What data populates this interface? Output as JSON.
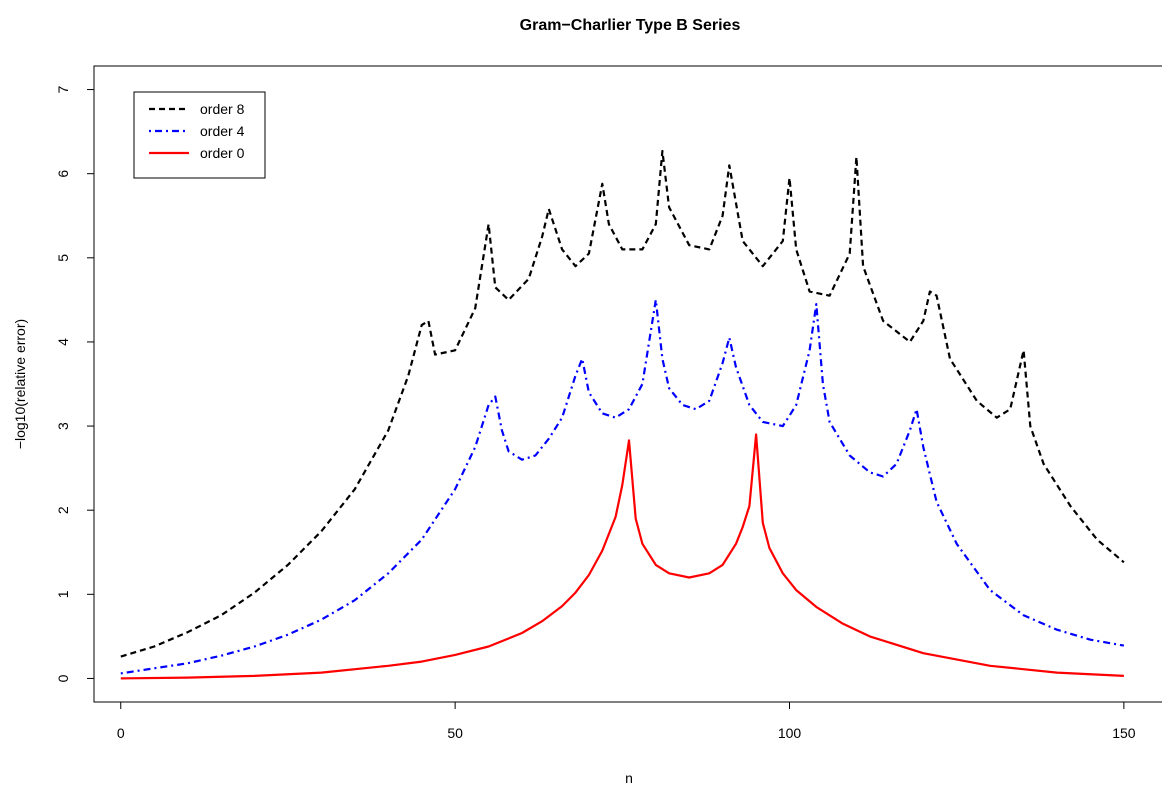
{
  "chart_data": {
    "type": "line",
    "title": "Gram−Charlier Type B Series",
    "xlabel": "n",
    "ylabel": "−log10(relative error)",
    "xlim": [
      -4,
      156
    ],
    "ylim": [
      -0.28,
      7.28
    ],
    "xticks": [
      0,
      50,
      100,
      150
    ],
    "yticks": [
      0,
      1,
      2,
      3,
      4,
      5,
      6,
      7
    ],
    "xtick_labels": [
      "0",
      "50",
      "100",
      "150"
    ],
    "ytick_labels": [
      "0",
      "1",
      "2",
      "3",
      "4",
      "5",
      "6",
      "7"
    ],
    "grid": false,
    "legend": {
      "position": "top-left",
      "entries": [
        "order 8",
        "order 4",
        "order 0"
      ]
    },
    "series": [
      {
        "name": "order 8",
        "color": "#000000",
        "dash": "dashed",
        "x": [
          0,
          5,
          10,
          15,
          20,
          25,
          30,
          35,
          40,
          43,
          45,
          46,
          47,
          50,
          53,
          55,
          56,
          58,
          61,
          63,
          64,
          66,
          68,
          70,
          72,
          73,
          75,
          78,
          80,
          81,
          82,
          85,
          88,
          90,
          91,
          93,
          96,
          99,
          100,
          101,
          103,
          106,
          109,
          110,
          111,
          114,
          118,
          120,
          121,
          122,
          124,
          128,
          131,
          133,
          135,
          136,
          138,
          142,
          146,
          150
        ],
        "values": [
          0.26,
          0.38,
          0.55,
          0.75,
          1.02,
          1.35,
          1.75,
          2.25,
          2.95,
          3.6,
          4.2,
          4.25,
          3.85,
          3.9,
          4.4,
          5.4,
          4.65,
          4.5,
          4.75,
          5.25,
          5.58,
          5.1,
          4.9,
          5.05,
          5.88,
          5.4,
          5.1,
          5.1,
          5.4,
          6.27,
          5.6,
          5.15,
          5.1,
          5.5,
          6.1,
          5.2,
          4.9,
          5.2,
          5.95,
          5.1,
          4.6,
          4.55,
          5.05,
          6.2,
          4.9,
          4.25,
          4.0,
          4.25,
          4.6,
          4.55,
          3.8,
          3.3,
          3.1,
          3.2,
          3.9,
          3.0,
          2.55,
          2.05,
          1.65,
          1.38
        ]
      },
      {
        "name": "order 4",
        "color": "#0000ff",
        "dash": "dotdash",
        "x": [
          0,
          5,
          10,
          15,
          20,
          25,
          30,
          35,
          40,
          45,
          50,
          53,
          55,
          56,
          57,
          58,
          60,
          62,
          64,
          66,
          68,
          69,
          70,
          72,
          74,
          76,
          78,
          80,
          81,
          82,
          84,
          86,
          88,
          90,
          91,
          92,
          94,
          96,
          99,
          101,
          103,
          104,
          105,
          106,
          109,
          112,
          114,
          116,
          118,
          119,
          120,
          122,
          125,
          130,
          135,
          140,
          145,
          150
        ],
        "values": [
          0.06,
          0.12,
          0.18,
          0.27,
          0.38,
          0.52,
          0.7,
          0.93,
          1.25,
          1.65,
          2.25,
          2.75,
          3.25,
          3.35,
          2.95,
          2.7,
          2.6,
          2.65,
          2.85,
          3.1,
          3.6,
          3.8,
          3.4,
          3.15,
          3.1,
          3.2,
          3.5,
          4.5,
          3.8,
          3.45,
          3.25,
          3.2,
          3.3,
          3.75,
          4.05,
          3.7,
          3.25,
          3.05,
          3.0,
          3.25,
          3.9,
          4.45,
          3.5,
          3.05,
          2.65,
          2.45,
          2.4,
          2.55,
          2.95,
          3.2,
          2.75,
          2.1,
          1.6,
          1.05,
          0.75,
          0.58,
          0.46,
          0.39
        ]
      },
      {
        "name": "order 0",
        "color": "#ff0000",
        "dash": "solid",
        "x": [
          0,
          10,
          20,
          30,
          40,
          45,
          50,
          55,
          60,
          63,
          66,
          68,
          70,
          72,
          74,
          75,
          76,
          77,
          78,
          80,
          82,
          85,
          88,
          90,
          92,
          93,
          94,
          95,
          96,
          97,
          99,
          101,
          104,
          108,
          112,
          120,
          130,
          140,
          150
        ],
        "values": [
          0.0,
          0.01,
          0.03,
          0.07,
          0.15,
          0.2,
          0.28,
          0.38,
          0.54,
          0.68,
          0.86,
          1.02,
          1.23,
          1.52,
          1.92,
          2.3,
          2.83,
          1.9,
          1.6,
          1.35,
          1.25,
          1.2,
          1.25,
          1.35,
          1.6,
          1.8,
          2.05,
          2.9,
          1.85,
          1.55,
          1.25,
          1.05,
          0.85,
          0.65,
          0.5,
          0.3,
          0.15,
          0.07,
          0.03
        ]
      }
    ]
  }
}
